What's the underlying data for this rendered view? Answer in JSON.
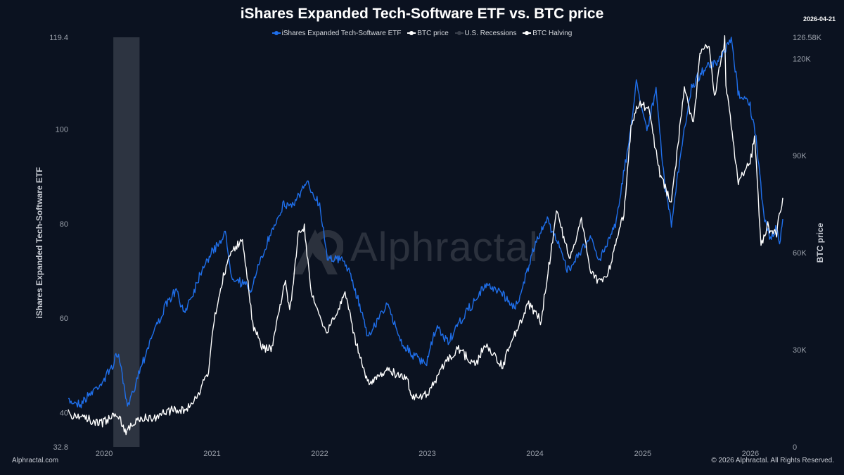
{
  "header": {
    "title": "iShares Expanded Tech-Software ETF vs. BTC price",
    "date": "2026-04-21"
  },
  "legend": [
    {
      "label": "iShares Expanded Tech-Software ETF",
      "color": "#1f6feb"
    },
    {
      "label": "BTC price",
      "color": "#ffffff"
    },
    {
      "label": "U.S. Recessions",
      "color": "#3a404c"
    },
    {
      "label": "BTC Halving",
      "color": "#ffffff"
    }
  ],
  "watermark": "Alphractal",
  "footer": {
    "left": "Alphractal.com",
    "right": "© 2026 Alphractal. All Rights Reserved."
  },
  "chart_data": {
    "type": "line",
    "title": "iShares Expanded Tech-Software ETF vs. BTC price",
    "x_range": [
      "2019-09-01",
      "2026-04-21"
    ],
    "x_ticks": [
      "2020",
      "2021",
      "2022",
      "2023",
      "2024",
      "2025",
      "2026"
    ],
    "y_left": {
      "label": "iShares Expanded Tech-Software ETF",
      "min": 32.8,
      "max": 119.4,
      "ticks": [
        "32.8",
        "40",
        "60",
        "80",
        "100",
        "119.4"
      ]
    },
    "y_right": {
      "label": "BTC price",
      "min": 0,
      "max": 126580,
      "ticks": [
        "0",
        "30K",
        "60K",
        "90K",
        "120K",
        "126.58K"
      ]
    },
    "recession": {
      "start": "2020-02-01",
      "end": "2020-04-30",
      "color": "#3a404c"
    },
    "series": [
      {
        "name": "iShares Expanded Tech-Software ETF",
        "axis": "left",
        "color": "#1f6feb",
        "points": [
          [
            "2019-09-01",
            42.5
          ],
          [
            "2019-10-15",
            42
          ],
          [
            "2019-11-15",
            44
          ],
          [
            "2020-01-01",
            47
          ],
          [
            "2020-02-19",
            52.5
          ],
          [
            "2020-03-20",
            41
          ],
          [
            "2020-04-30",
            49
          ],
          [
            "2020-06-15",
            57
          ],
          [
            "2020-08-01",
            63
          ],
          [
            "2020-09-01",
            66
          ],
          [
            "2020-09-25",
            61
          ],
          [
            "2020-11-01",
            66
          ],
          [
            "2020-12-01",
            71
          ],
          [
            "2021-02-15",
            78
          ],
          [
            "2021-03-08",
            69
          ],
          [
            "2021-05-12",
            66
          ],
          [
            "2021-06-15",
            72
          ],
          [
            "2021-07-31",
            80
          ],
          [
            "2021-09-01",
            84
          ],
          [
            "2021-10-01",
            84
          ],
          [
            "2021-11-20",
            88.5
          ],
          [
            "2022-01-01",
            84
          ],
          [
            "2022-01-27",
            73
          ],
          [
            "2022-03-29",
            72
          ],
          [
            "2022-05-11",
            64
          ],
          [
            "2022-06-16",
            56
          ],
          [
            "2022-08-15",
            63
          ],
          [
            "2022-10-14",
            54
          ],
          [
            "2022-12-27",
            50
          ],
          [
            "2023-02-01",
            58
          ],
          [
            "2023-03-13",
            55
          ],
          [
            "2023-05-01",
            60
          ],
          [
            "2023-07-19",
            67
          ],
          [
            "2023-08-31",
            66
          ],
          [
            "2023-10-27",
            62
          ],
          [
            "2023-12-31",
            75
          ],
          [
            "2024-02-09",
            81
          ],
          [
            "2024-03-15",
            77
          ],
          [
            "2024-04-19",
            70
          ],
          [
            "2024-06-01",
            74
          ],
          [
            "2024-07-10",
            77
          ],
          [
            "2024-08-05",
            72
          ],
          [
            "2024-09-30",
            80
          ],
          [
            "2024-11-15",
            97
          ],
          [
            "2024-12-10",
            110
          ],
          [
            "2025-01-15",
            100
          ],
          [
            "2025-02-15",
            108
          ],
          [
            "2025-03-15",
            89
          ],
          [
            "2025-04-08",
            80
          ],
          [
            "2025-05-15",
            97
          ],
          [
            "2025-06-15",
            109
          ],
          [
            "2025-07-31",
            113
          ],
          [
            "2025-09-15",
            114
          ],
          [
            "2025-10-28",
            119
          ],
          [
            "2025-11-20",
            108
          ],
          [
            "2025-12-31",
            105
          ],
          [
            "2026-01-20",
            98
          ],
          [
            "2026-02-15",
            82
          ],
          [
            "2026-03-10",
            77
          ],
          [
            "2026-03-31",
            79
          ],
          [
            "2026-04-10",
            75
          ],
          [
            "2026-04-21",
            81
          ]
        ]
      },
      {
        "name": "BTC price",
        "axis": "right",
        "color": "#ffffff",
        "points": [
          [
            "2019-09-01",
            10000
          ],
          [
            "2019-10-26",
            9200
          ],
          [
            "2019-12-17",
            6900
          ],
          [
            "2020-02-13",
            10300
          ],
          [
            "2020-03-12",
            5000
          ],
          [
            "2020-05-01",
            8800
          ],
          [
            "2020-06-30",
            9200
          ],
          [
            "2020-08-01",
            11500
          ],
          [
            "2020-09-30",
            10700
          ],
          [
            "2020-11-01",
            14000
          ],
          [
            "2020-12-20",
            23000
          ],
          [
            "2021-01-08",
            40000
          ],
          [
            "2021-02-21",
            57000
          ],
          [
            "2021-03-13",
            61000
          ],
          [
            "2021-04-14",
            64000
          ],
          [
            "2021-05-19",
            38000
          ],
          [
            "2021-06-22",
            31000
          ],
          [
            "2021-07-20",
            30000
          ],
          [
            "2021-09-07",
            52000
          ],
          [
            "2021-09-21",
            41000
          ],
          [
            "2021-10-20",
            65000
          ],
          [
            "2021-11-10",
            68000
          ],
          [
            "2021-12-04",
            47000
          ],
          [
            "2022-01-24",
            35000
          ],
          [
            "2022-03-28",
            47500
          ],
          [
            "2022-05-12",
            29000
          ],
          [
            "2022-06-18",
            19000
          ],
          [
            "2022-08-15",
            24000
          ],
          [
            "2022-10-25",
            20500
          ],
          [
            "2022-11-09",
            16000
          ],
          [
            "2022-12-31",
            16500
          ],
          [
            "2023-02-15",
            24000
          ],
          [
            "2023-04-14",
            30500
          ],
          [
            "2023-06-15",
            25000
          ],
          [
            "2023-07-13",
            31500
          ],
          [
            "2023-09-11",
            25000
          ],
          [
            "2023-10-24",
            34500
          ],
          [
            "2023-12-08",
            44000
          ],
          [
            "2024-01-23",
            39000
          ],
          [
            "2024-03-14",
            73000
          ],
          [
            "2024-04-30",
            58000
          ],
          [
            "2024-06-07",
            71000
          ],
          [
            "2024-07-05",
            55000
          ],
          [
            "2024-08-05",
            51000
          ],
          [
            "2024-09-06",
            54000
          ],
          [
            "2024-10-29",
            72000
          ],
          [
            "2024-11-22",
            99000
          ],
          [
            "2024-12-17",
            106000
          ],
          [
            "2025-01-20",
            105000
          ],
          [
            "2025-02-28",
            84000
          ],
          [
            "2025-04-08",
            76000
          ],
          [
            "2025-05-22",
            111000
          ],
          [
            "2025-06-22",
            100000
          ],
          [
            "2025-07-14",
            122000
          ],
          [
            "2025-08-14",
            124000
          ],
          [
            "2025-09-01",
            108000
          ],
          [
            "2025-10-06",
            126000
          ],
          [
            "2025-10-10",
            112000
          ],
          [
            "2025-11-21",
            82000
          ],
          [
            "2025-12-31",
            88000
          ],
          [
            "2026-01-15",
            96000
          ],
          [
            "2026-02-06",
            63000
          ],
          [
            "2026-03-01",
            68000
          ],
          [
            "2026-03-31",
            66000
          ],
          [
            "2026-04-21",
            77000
          ]
        ]
      }
    ]
  }
}
